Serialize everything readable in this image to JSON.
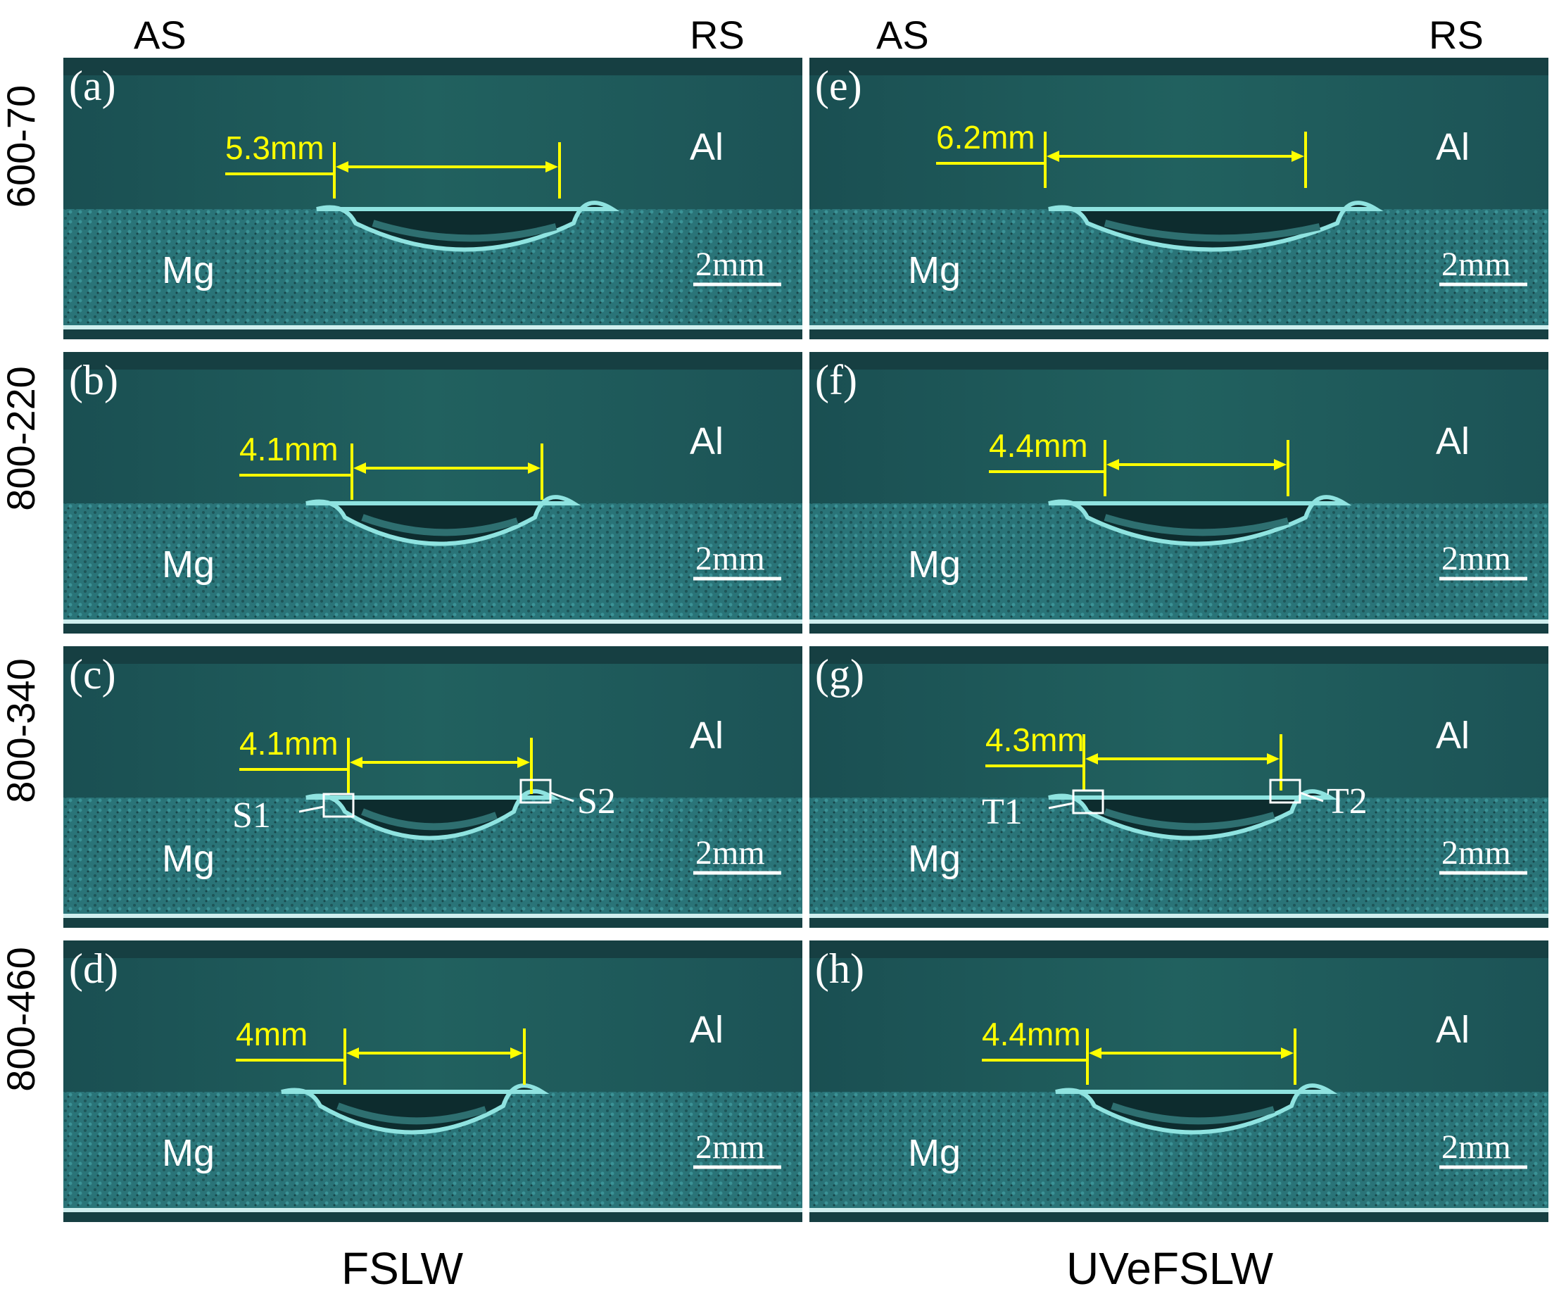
{
  "headers": {
    "left_as": "AS",
    "left_rs": "RS",
    "right_as": "AS",
    "right_rs": "RS"
  },
  "rows": [
    "600-70",
    "800-220",
    "800-340",
    "800-460"
  ],
  "columns": [
    "FSLW",
    "UVeFSLW"
  ],
  "panels": [
    {
      "label": "(a)",
      "al": "Al",
      "mg": "Mg",
      "measure": "5.3mm",
      "scale": "2mm",
      "m1": 0.0,
      "m2": 0.0
    },
    {
      "label": "(b)",
      "al": "Al",
      "mg": "Mg",
      "measure": "4.1mm",
      "scale": "2mm"
    },
    {
      "label": "(c)",
      "al": "Al",
      "mg": "Mg",
      "measure": "4.1mm",
      "scale": "2mm",
      "box1": "S1",
      "box2": "S2"
    },
    {
      "label": "(d)",
      "al": "Al",
      "mg": "Mg",
      "measure": "4mm",
      "scale": "2mm"
    },
    {
      "label": "(e)",
      "al": "Al",
      "mg": "Mg",
      "measure": "6.2mm",
      "scale": "2mm"
    },
    {
      "label": "(f)",
      "al": "Al",
      "mg": "Mg",
      "measure": "4.4mm",
      "scale": "2mm"
    },
    {
      "label": "(g)",
      "al": "Al",
      "mg": "Mg",
      "measure": "4.3mm",
      "scale": "2mm",
      "box1": "T1",
      "box2": "T2"
    },
    {
      "label": "(h)",
      "al": "Al",
      "mg": "Mg",
      "measure": "4.4mm",
      "scale": "2mm"
    }
  ],
  "colors": {
    "al_region": "#1f5a5c",
    "mg_region": "#2a7478",
    "annotation": "#ffff00"
  }
}
